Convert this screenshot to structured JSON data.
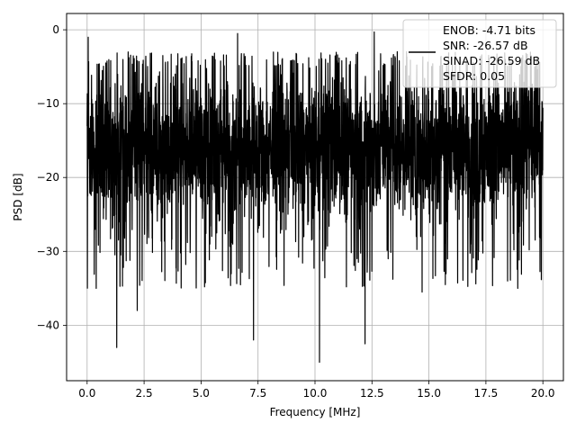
{
  "chart_data": {
    "type": "line",
    "title": "",
    "xlabel": "Frequency [MHz]",
    "ylabel": "PSD [dB]",
    "xlim": [
      -0.9,
      20.9
    ],
    "ylim": [
      -47.5,
      2.2
    ],
    "xticks": [
      0.0,
      2.5,
      5.0,
      7.5,
      10.0,
      12.5,
      15.0,
      17.5,
      20.0
    ],
    "xtick_labels": [
      "0.0",
      "2.5",
      "5.0",
      "7.5",
      "10.0",
      "12.5",
      "15.0",
      "17.5",
      "20.0"
    ],
    "yticks": [
      0,
      -10,
      -20,
      -30,
      -40
    ],
    "ytick_labels": [
      "0",
      "−10",
      "−20",
      "−30",
      "−40"
    ],
    "grid": true,
    "legend_position": "top-right",
    "series": [
      {
        "color": "#000000",
        "x_range": [
          0,
          20
        ],
        "points": 3000,
        "approx_band_db": [
          -27,
          -5
        ],
        "approx_median_db": -16,
        "notable_peaks": [
          {
            "x": 0.05,
            "y": -1
          },
          {
            "x": 1.8,
            "y": -3
          },
          {
            "x": 6.6,
            "y": -0.5
          },
          {
            "x": 12.6,
            "y": -0.3
          }
        ],
        "notable_dips": [
          {
            "x": 0.4,
            "y": -35
          },
          {
            "x": 1.3,
            "y": -43
          },
          {
            "x": 2.2,
            "y": -38
          },
          {
            "x": 7.3,
            "y": -42
          },
          {
            "x": 10.2,
            "y": -45
          },
          {
            "x": 12.2,
            "y": -42.5
          },
          {
            "x": 14.7,
            "y": -35.5
          },
          {
            "x": 18.9,
            "y": -35
          }
        ]
      }
    ],
    "legend": {
      "line_color": "#000000",
      "lines": [
        "ENOB: -4.71 bits",
        "SNR: -26.57 dB",
        "SINAD: -26.59 dB",
        "SFDR: 0.05"
      ]
    }
  }
}
